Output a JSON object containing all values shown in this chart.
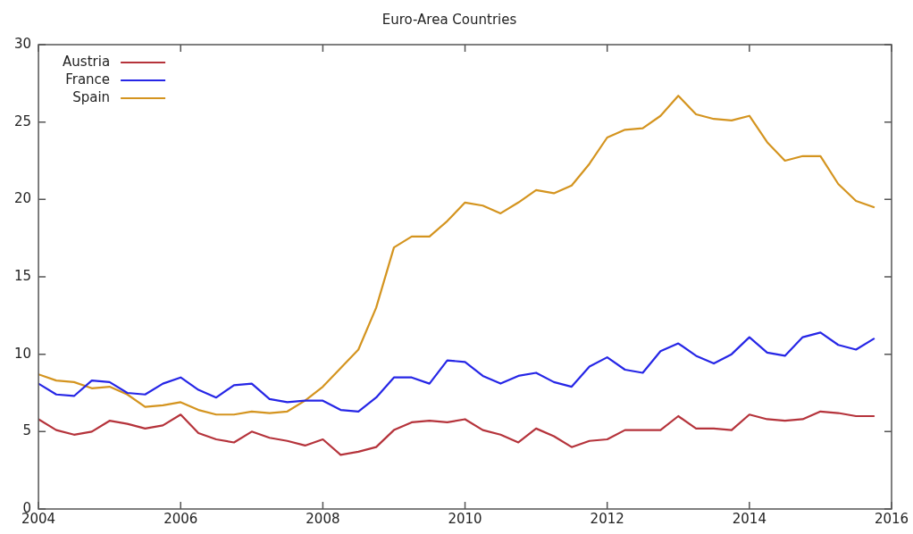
{
  "chart_data": {
    "type": "line",
    "title": "Euro-Area Countries",
    "x": [
      2004,
      2004.25,
      2004.5,
      2004.75,
      2005,
      2005.25,
      2005.5,
      2005.75,
      2006,
      2006.25,
      2006.5,
      2006.75,
      2007,
      2007.25,
      2007.5,
      2007.75,
      2008,
      2008.25,
      2008.5,
      2008.75,
      2009,
      2009.25,
      2009.5,
      2009.75,
      2010,
      2010.25,
      2010.5,
      2010.75,
      2011,
      2011.25,
      2011.5,
      2011.75,
      2012,
      2012.25,
      2012.5,
      2012.75,
      2013,
      2013.25,
      2013.5,
      2013.75,
      2014,
      2014.25,
      2014.5,
      2014.75,
      2015,
      2015.25,
      2015.5,
      2015.75
    ],
    "series": [
      {
        "name": "Austria",
        "color": "#b5333b",
        "values": [
          5.8,
          5.1,
          4.8,
          5.0,
          5.7,
          5.5,
          5.2,
          5.4,
          6.1,
          4.9,
          4.5,
          4.3,
          5.0,
          4.6,
          4.4,
          4.1,
          4.5,
          3.5,
          3.7,
          4.0,
          5.1,
          5.6,
          5.7,
          5.6,
          5.8,
          5.1,
          4.8,
          4.3,
          5.2,
          4.7,
          4.0,
          4.4,
          4.5,
          5.1,
          5.1,
          5.1,
          6.0,
          5.2,
          5.2,
          5.1,
          6.1,
          5.8,
          5.7,
          5.8,
          6.3,
          6.2,
          6.0,
          6.0
        ]
      },
      {
        "name": "France",
        "color": "#2626e6",
        "values": [
          8.1,
          7.4,
          7.3,
          8.3,
          8.2,
          7.5,
          7.4,
          8.1,
          8.5,
          7.7,
          7.2,
          8.0,
          8.1,
          7.1,
          6.9,
          7.0,
          7.0,
          6.4,
          6.3,
          7.2,
          8.5,
          8.5,
          8.1,
          9.6,
          9.5,
          8.6,
          8.1,
          8.6,
          8.8,
          8.2,
          7.9,
          9.2,
          9.8,
          9.0,
          8.8,
          10.2,
          10.7,
          9.9,
          9.4,
          10.0,
          11.1,
          10.1,
          9.9,
          11.1,
          11.4,
          10.6,
          10.3,
          11.0
        ]
      },
      {
        "name": "Spain",
        "color": "#d4941f",
        "values": [
          8.7,
          8.3,
          8.2,
          7.8,
          7.9,
          7.4,
          6.6,
          6.7,
          6.9,
          6.4,
          6.1,
          6.1,
          6.3,
          6.2,
          6.3,
          7.0,
          7.9,
          9.1,
          10.3,
          13.0,
          16.9,
          17.6,
          17.6,
          18.6,
          19.8,
          19.6,
          19.1,
          19.8,
          20.6,
          20.4,
          20.9,
          22.3,
          24.0,
          24.5,
          24.6,
          25.4,
          26.7,
          25.5,
          25.2,
          25.1,
          25.4,
          23.7,
          22.5,
          22.8,
          22.8,
          21.0,
          19.9,
          19.5
        ]
      }
    ],
    "xlim": [
      2004,
      2016
    ],
    "xticks": [
      2004,
      2006,
      2008,
      2010,
      2012,
      2014,
      2016
    ],
    "ylim": [
      0,
      30
    ],
    "yticks": [
      0,
      5,
      10,
      15,
      20,
      25,
      30
    ],
    "grid": false,
    "legend": "top left",
    "marker": "none",
    "line_style": "solid"
  }
}
